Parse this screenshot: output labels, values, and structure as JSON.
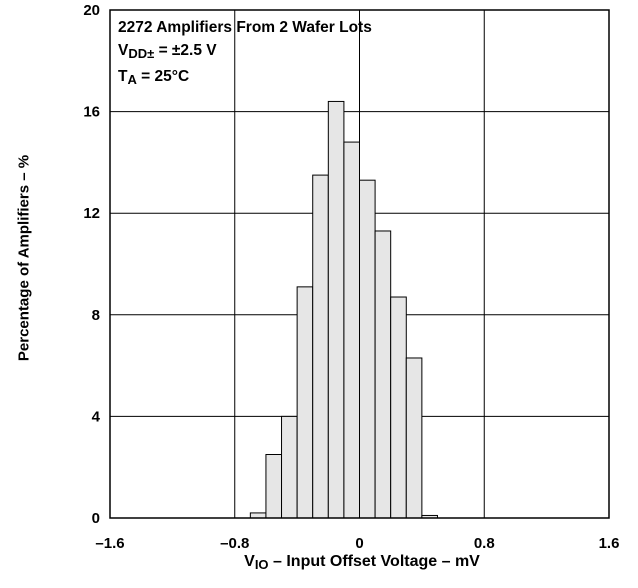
{
  "chart_data": {
    "type": "bar",
    "annotation": {
      "line1": "2272 Amplifiers From 2 Wafer Lots",
      "line2_main": "V",
      "line2_sub": "DD±",
      "line2_rest": " = ±2.5 V",
      "line3_main": "T",
      "line3_sub": "A",
      "line3_rest": " = 25°C"
    },
    "xlabel_main": "V",
    "xlabel_sub": "IO",
    "xlabel_rest": " – Input Offset Voltage – mV",
    "ylabel": "Percentage of Amplifiers – %",
    "xlim": [
      -1.6,
      1.6
    ],
    "ylim": [
      0,
      20
    ],
    "xticks": [
      -1.6,
      -0.8,
      0,
      0.8,
      1.6
    ],
    "xtick_labels": [
      "–1.6",
      "–0.8",
      "0",
      "0.8",
      "1.6"
    ],
    "yticks": [
      0,
      4,
      8,
      12,
      16,
      20
    ],
    "ytick_labels": [
      "0",
      "4",
      "8",
      "12",
      "16",
      "20"
    ],
    "grid": true,
    "bin_width": 0.1,
    "bins": [
      {
        "x0": -0.7,
        "value": 0.2
      },
      {
        "x0": -0.6,
        "value": 2.5
      },
      {
        "x0": -0.5,
        "value": 4.0
      },
      {
        "x0": -0.4,
        "value": 9.1
      },
      {
        "x0": -0.3,
        "value": 13.5
      },
      {
        "x0": -0.2,
        "value": 16.4
      },
      {
        "x0": -0.1,
        "value": 14.8
      },
      {
        "x0": 0.0,
        "value": 13.3
      },
      {
        "x0": 0.1,
        "value": 11.3
      },
      {
        "x0": 0.2,
        "value": 8.7
      },
      {
        "x0": 0.3,
        "value": 6.3
      },
      {
        "x0": 0.4,
        "value": 0.1
      }
    ],
    "colors": {
      "bar_fill": "#e6e6e6",
      "bar_stroke": "#000000",
      "grid": "#000000"
    }
  }
}
